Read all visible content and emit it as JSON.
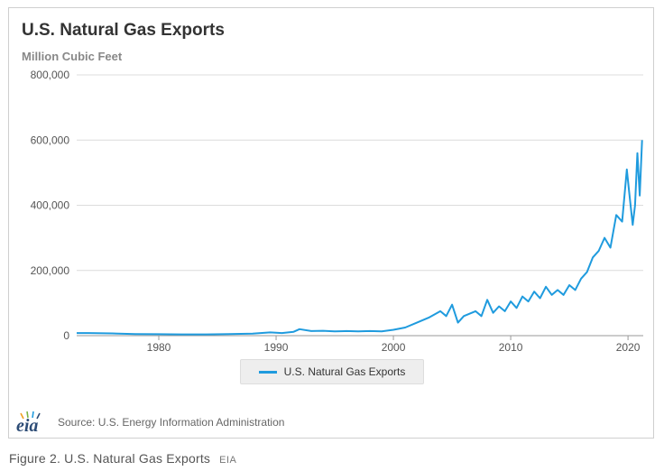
{
  "chart_data": {
    "type": "line",
    "title": "U.S. Natural Gas Exports",
    "subtitle": "Million Cubic Feet",
    "xlabel": "",
    "ylabel": "",
    "xlim": [
      1973,
      2021.3
    ],
    "ylim": [
      0,
      800000
    ],
    "yticks": [
      0,
      200000,
      400000,
      600000,
      800000
    ],
    "ytick_labels": [
      "0",
      "200,000",
      "400,000",
      "600,000",
      "800,000"
    ],
    "xticks": [
      1980,
      1990,
      2000,
      2010,
      2020
    ],
    "xtick_labels": [
      "1980",
      "1990",
      "2000",
      "2010",
      "2020"
    ],
    "grid": true,
    "legend_position": "bottom-center",
    "series": [
      {
        "name": "U.S. Natural Gas Exports",
        "color": "#1f9bde",
        "points": [
          [
            1973.0,
            8000
          ],
          [
            1974.0,
            8000
          ],
          [
            1976.0,
            7000
          ],
          [
            1978.0,
            5000
          ],
          [
            1980.0,
            4500
          ],
          [
            1982.0,
            4000
          ],
          [
            1984.0,
            4000
          ],
          [
            1986.0,
            5000
          ],
          [
            1988.0,
            6000
          ],
          [
            1989.5,
            10000
          ],
          [
            1990.5,
            8000
          ],
          [
            1991.5,
            12000
          ],
          [
            1992.0,
            20000
          ],
          [
            1993.0,
            14000
          ],
          [
            1994.0,
            15000
          ],
          [
            1995.0,
            13000
          ],
          [
            1996.0,
            14000
          ],
          [
            1997.0,
            13000
          ],
          [
            1998.0,
            14000
          ],
          [
            1999.0,
            13000
          ],
          [
            2000.0,
            18000
          ],
          [
            2001.0,
            25000
          ],
          [
            2002.0,
            40000
          ],
          [
            2003.0,
            55000
          ],
          [
            2004.0,
            75000
          ],
          [
            2004.5,
            60000
          ],
          [
            2005.0,
            95000
          ],
          [
            2005.5,
            40000
          ],
          [
            2006.0,
            60000
          ],
          [
            2007.0,
            75000
          ],
          [
            2007.5,
            60000
          ],
          [
            2008.0,
            110000
          ],
          [
            2008.5,
            70000
          ],
          [
            2009.0,
            90000
          ],
          [
            2009.5,
            75000
          ],
          [
            2010.0,
            105000
          ],
          [
            2010.5,
            85000
          ],
          [
            2011.0,
            120000
          ],
          [
            2011.5,
            105000
          ],
          [
            2012.0,
            135000
          ],
          [
            2012.5,
            115000
          ],
          [
            2013.0,
            150000
          ],
          [
            2013.5,
            125000
          ],
          [
            2014.0,
            140000
          ],
          [
            2014.5,
            125000
          ],
          [
            2015.0,
            155000
          ],
          [
            2015.5,
            140000
          ],
          [
            2016.0,
            175000
          ],
          [
            2016.5,
            195000
          ],
          [
            2017.0,
            240000
          ],
          [
            2017.5,
            260000
          ],
          [
            2018.0,
            300000
          ],
          [
            2018.5,
            270000
          ],
          [
            2019.0,
            370000
          ],
          [
            2019.5,
            350000
          ],
          [
            2019.9,
            510000
          ],
          [
            2020.1,
            440000
          ],
          [
            2020.4,
            340000
          ],
          [
            2020.6,
            400000
          ],
          [
            2020.8,
            560000
          ],
          [
            2021.0,
            430000
          ],
          [
            2021.2,
            600000
          ]
        ]
      }
    ]
  },
  "source": {
    "logo_text": "eia",
    "text": "Source: U.S. Energy Information Administration"
  },
  "caption": {
    "text": "Figure 2. U.S. Natural Gas Exports",
    "credit": "EIA"
  }
}
